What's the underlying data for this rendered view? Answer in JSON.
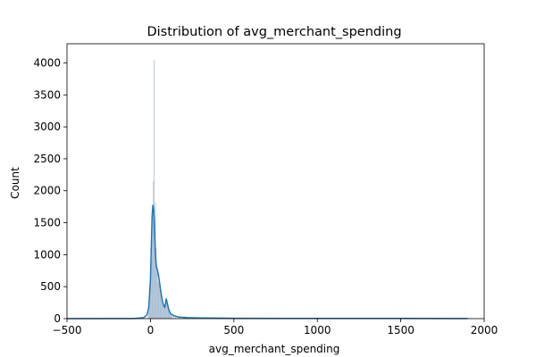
{
  "chart_data": {
    "type": "bar",
    "title": "Distribution of avg_merchant_spending",
    "xlabel": "avg_merchant_spending",
    "ylabel": "Count",
    "xlim": [
      -500,
      2000
    ],
    "ylim": [
      0,
      4300
    ],
    "xticks": [
      -500,
      0,
      500,
      1000,
      1500,
      2000
    ],
    "yticks": [
      0,
      500,
      1000,
      1500,
      2000,
      2500,
      3000,
      3500,
      4000
    ],
    "grid": false,
    "legend": "none",
    "colors": {
      "bars": "#a6bcd1",
      "kde": "#1f77b4"
    },
    "histogram": {
      "bin_width": 4,
      "data_range": [
        -450,
        1920
      ],
      "bins": [
        {
          "x": -18,
          "count": 10
        },
        {
          "x": -14,
          "count": 40
        },
        {
          "x": -10,
          "count": 120
        },
        {
          "x": -6,
          "count": 260
        },
        {
          "x": -2,
          "count": 420
        },
        {
          "x": 2,
          "count": 600
        },
        {
          "x": 6,
          "count": 900
        },
        {
          "x": 10,
          "count": 1250
        },
        {
          "x": 14,
          "count": 1700
        },
        {
          "x": 18,
          "count": 2150
        },
        {
          "x": 22,
          "count": 4050
        },
        {
          "x": 26,
          "count": 1550
        },
        {
          "x": 30,
          "count": 1820
        },
        {
          "x": 34,
          "count": 1100
        },
        {
          "x": 38,
          "count": 850
        },
        {
          "x": 42,
          "count": 720
        },
        {
          "x": 46,
          "count": 560
        },
        {
          "x": 50,
          "count": 700
        },
        {
          "x": 54,
          "count": 520
        },
        {
          "x": 58,
          "count": 450
        },
        {
          "x": 62,
          "count": 380
        },
        {
          "x": 66,
          "count": 320
        },
        {
          "x": 70,
          "count": 260
        },
        {
          "x": 74,
          "count": 220
        },
        {
          "x": 78,
          "count": 190
        },
        {
          "x": 82,
          "count": 170
        },
        {
          "x": 86,
          "count": 230
        },
        {
          "x": 90,
          "count": 300
        },
        {
          "x": 94,
          "count": 340
        },
        {
          "x": 98,
          "count": 280
        },
        {
          "x": 102,
          "count": 200
        },
        {
          "x": 106,
          "count": 150
        },
        {
          "x": 110,
          "count": 120
        },
        {
          "x": 114,
          "count": 100
        },
        {
          "x": 118,
          "count": 80
        },
        {
          "x": 122,
          "count": 65
        },
        {
          "x": 126,
          "count": 55
        },
        {
          "x": 130,
          "count": 45
        },
        {
          "x": 140,
          "count": 35
        },
        {
          "x": 150,
          "count": 25
        },
        {
          "x": 170,
          "count": 18
        },
        {
          "x": 200,
          "count": 12
        },
        {
          "x": 250,
          "count": 8
        },
        {
          "x": 350,
          "count": 5
        }
      ]
    },
    "kde": {
      "x": [
        -500,
        -100,
        -40,
        -20,
        -10,
        0,
        5,
        10,
        15,
        20,
        25,
        30,
        35,
        40,
        45,
        50,
        55,
        60,
        65,
        70,
        75,
        80,
        85,
        90,
        95,
        100,
        110,
        120,
        140,
        170,
        220,
        300,
        500,
        800,
        1200,
        1500,
        1900
      ],
      "y": [
        0,
        2,
        15,
        60,
        180,
        600,
        1100,
        1600,
        1780,
        1700,
        1350,
        1000,
        820,
        780,
        720,
        650,
        560,
        460,
        380,
        300,
        240,
        200,
        180,
        230,
        310,
        250,
        140,
        80,
        45,
        25,
        15,
        10,
        6,
        4,
        3,
        3,
        2
      ]
    }
  }
}
